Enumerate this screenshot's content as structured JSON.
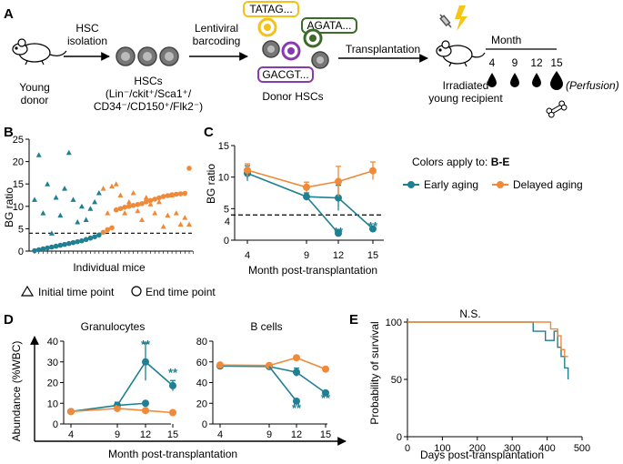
{
  "panel_a": {
    "label": "A",
    "mouse_caption_1": "Young",
    "mouse_caption_2": "donor",
    "arrow1_line1": "HSC",
    "arrow1_line2": "isolation",
    "hscs_title": "HSCs",
    "hscs_markers_1": "(Lin⁻/ckit⁺/Sca1⁺/",
    "hscs_markers_2": "CD34⁻/CD150⁺/Flk2⁻)",
    "arrow2_line1": "Lentiviral",
    "arrow2_line2": "barcoding",
    "barcode_1": "TATAG...",
    "barcode_2": "AGATA...",
    "barcode_3": "GACGT...",
    "donor_caption": "Donor HSCs",
    "arrow3_label": "Transplantation",
    "recipient_caption_1": "Irradiated",
    "recipient_caption_2": "young recipient",
    "month_title": "Month",
    "months": [
      "4",
      "9",
      "12",
      "15"
    ],
    "perfusion": "(Perfusion)",
    "colors": {
      "yellow": "#f2c21b",
      "green": "#3c6b2c",
      "purple": "#8a3ab0",
      "gray": "#888888"
    }
  },
  "legend_bc": {
    "triangle_label": "Initial time point",
    "circle_label": "End time point"
  },
  "legend_c": {
    "title_prefix": "Colors apply to: ",
    "title_bold": "B-E",
    "early": "Early aging",
    "delayed": "Delayed aging"
  },
  "colors": {
    "early": "#1f7f93",
    "delayed": "#ef8a3b"
  },
  "chart_data": [
    {
      "panel": "B",
      "type": "scatter",
      "xlabel": "Individual mice",
      "ylabel": "BG ratio",
      "yticks": [
        "0",
        "5",
        "10",
        "15",
        "20",
        "25"
      ],
      "ylim": [
        0,
        25
      ],
      "threshold": 4,
      "early_end": [
        0.1,
        0.3,
        0.5,
        0.7,
        0.9,
        1.1,
        1.3,
        1.5,
        1.7,
        1.9,
        2.1,
        2.3,
        2.6,
        2.9,
        3.2,
        3.6
      ],
      "early_initial": [
        11.5,
        21.5,
        8.5,
        15,
        4,
        12,
        8,
        14,
        22,
        11.5,
        6.5,
        10,
        7,
        9.5,
        11,
        13
      ],
      "delayed_end": [
        4.2,
        4.8,
        5.2,
        9.2,
        9.5,
        9.8,
        10,
        10.2,
        10.4,
        10.6,
        11,
        11.3,
        11.6,
        11.9,
        12.2,
        12.4,
        12.6,
        12.7,
        12.8,
        12.9,
        18.5
      ],
      "delayed_initial": [
        14,
        8.5,
        14.5,
        15,
        12.5,
        8.5,
        11,
        13,
        9,
        7,
        12,
        10.5,
        8.5,
        11,
        5.5,
        8,
        12.5,
        8.5,
        6,
        7.5,
        6
      ]
    },
    {
      "panel": "C",
      "type": "line",
      "title": "",
      "xlabel": "Month post-transplantation",
      "ylabel": "BG ratio",
      "x": [
        "4",
        "9",
        "12",
        "15"
      ],
      "yticks": [
        "0",
        "5",
        "10",
        "15"
      ],
      "ylim": [
        0,
        15
      ],
      "threshold_label": "4",
      "threshold": 4,
      "series": [
        {
          "name": "Early aging",
          "values": [
            10.6,
            6.9,
            6.7,
            1.8
          ],
          "err": [
            1.2,
            0.6,
            2.0,
            0.2
          ]
        },
        {
          "name": "Delayed aging",
          "values": [
            11.1,
            8.4,
            9.3,
            11.0
          ],
          "err": [
            1.0,
            0.8,
            2.4,
            1.4
          ]
        }
      ],
      "early_split_value": 1.1,
      "annotations": [
        "**",
        "**"
      ]
    },
    {
      "panel": "D-granulocytes",
      "type": "line",
      "title": "Granulocytes",
      "ylabel": "Abundance (%WBC)",
      "x": [
        "4",
        "9",
        "12",
        "15"
      ],
      "yticks": [
        "0",
        "10",
        "20",
        "30",
        "40"
      ],
      "ylim": [
        0,
        40
      ],
      "series": [
        {
          "name": "Early aging",
          "values": [
            6,
            9,
            30,
            18.5
          ],
          "err": [
            0.5,
            1.5,
            9,
            2.5
          ]
        },
        {
          "name": "Delayed aging",
          "values": [
            6,
            7.5,
            6.5,
            5.5
          ],
          "err": [
            0.5,
            1,
            1,
            0.6
          ]
        }
      ],
      "early_split_value": 10,
      "annotations": [
        "**",
        "**"
      ]
    },
    {
      "panel": "D-bcells",
      "type": "line",
      "title": "B cells",
      "x": [
        "4",
        "9",
        "12",
        "15"
      ],
      "yticks": [
        "0",
        "20",
        "40",
        "60",
        "80"
      ],
      "ylim": [
        0,
        80
      ],
      "series": [
        {
          "name": "Early aging",
          "values": [
            56,
            55.5,
            50,
            30
          ],
          "err": [
            1.5,
            2,
            4,
            2
          ]
        },
        {
          "name": "Delayed aging",
          "values": [
            57,
            56.5,
            64,
            53
          ],
          "err": [
            1.5,
            2,
            2,
            2
          ]
        }
      ],
      "early_split_value": 22,
      "annotations": [
        "**",
        "**"
      ]
    },
    {
      "panel": "E",
      "type": "line",
      "xlabel": "Days post-transplantation",
      "ylabel": "Probability of survival",
      "xticks": [
        "0",
        "100",
        "200",
        "300",
        "400",
        "500"
      ],
      "yticks": [
        "0",
        "50",
        "100"
      ],
      "xlim": [
        0,
        500
      ],
      "ylim": [
        0,
        100
      ],
      "annotation": "N.S.",
      "series": [
        {
          "name": "Early aging",
          "x": [
            0,
            350,
            360,
            370,
            395,
            410,
            420,
            430,
            440,
            450,
            460
          ],
          "values": [
            100,
            100,
            92,
            92,
            84,
            84,
            92,
            78,
            70,
            60,
            50
          ]
        },
        {
          "name": "Delayed aging",
          "x": [
            0,
            400,
            410,
            420,
            430,
            440,
            450,
            460
          ],
          "values": [
            100,
            100,
            94,
            94,
            88,
            76,
            70,
            70
          ]
        }
      ]
    }
  ],
  "panel_labels": {
    "b": "B",
    "c": "C",
    "d": "D",
    "e": "E"
  },
  "d_xlabel": "Month post-transplantation"
}
